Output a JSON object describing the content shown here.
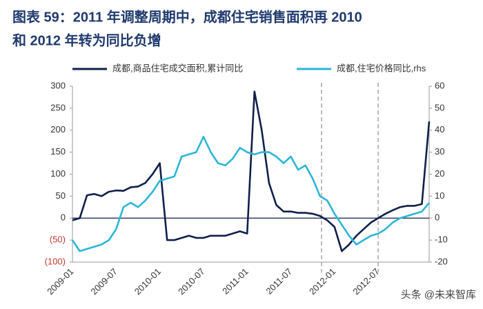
{
  "chart_data": {
    "type": "line",
    "title": "图表 59：2011 年调整周期中，成都住宅销售面积再 2010",
    "title_line2": "和 2012 年转为同比负增",
    "watermark": "头条 @未来智库",
    "categories": [
      "2009-01",
      null,
      null,
      null,
      null,
      null,
      "2009-07",
      null,
      null,
      null,
      null,
      null,
      "2010-01",
      null,
      null,
      null,
      null,
      null,
      "2010-07",
      null,
      null,
      null,
      null,
      null,
      "2011-01",
      null,
      null,
      null,
      null,
      null,
      "2011-07",
      null,
      null,
      null,
      null,
      null,
      "2012-01",
      null,
      null,
      null,
      null,
      null,
      "2012-07",
      null,
      null,
      null,
      null,
      null,
      null,
      null
    ],
    "series": [
      {
        "name": "成都,商品住宅成交面积,累计同比",
        "color": "#0f1f4b",
        "axis": "y",
        "values": [
          -5,
          0,
          52,
          55,
          50,
          60,
          63,
          62,
          70,
          72,
          80,
          100,
          125,
          -50,
          -50,
          -45,
          -40,
          -45,
          -45,
          -40,
          -40,
          -40,
          -35,
          -30,
          -35,
          288,
          200,
          80,
          30,
          15,
          15,
          12,
          12,
          10,
          5,
          -5,
          -20,
          -75,
          -60,
          -40,
          -25,
          -10,
          0,
          10,
          18,
          25,
          28,
          28,
          32,
          220
        ]
      },
      {
        "name": "成都,住宅价格同比,rhs",
        "color": "#2bb5d8",
        "axis": "y2",
        "values": [
          -10,
          -15,
          -14,
          -13,
          -12,
          -10,
          -5,
          5,
          7,
          5,
          8,
          12,
          17,
          18,
          19,
          28,
          29,
          30,
          37,
          30,
          25,
          24,
          27,
          32,
          30,
          29,
          30,
          30,
          28,
          25,
          28,
          22,
          24,
          18,
          10,
          8,
          2,
          -3,
          -8,
          -12,
          -10,
          -8,
          -7,
          -5,
          -2,
          0,
          1,
          2,
          3,
          7
        ]
      }
    ],
    "ylim": [
      -100,
      300
    ],
    "yticks": [
      {
        "value": -100,
        "label": "(100)"
      },
      {
        "value": -50,
        "label": "(50)"
      },
      0,
      50,
      100,
      150,
      200,
      250,
      300
    ],
    "y2lim": [
      -20,
      60
    ],
    "y2ticks": [
      -20,
      -10,
      0,
      10,
      20,
      30,
      40,
      50,
      60
    ]
  }
}
